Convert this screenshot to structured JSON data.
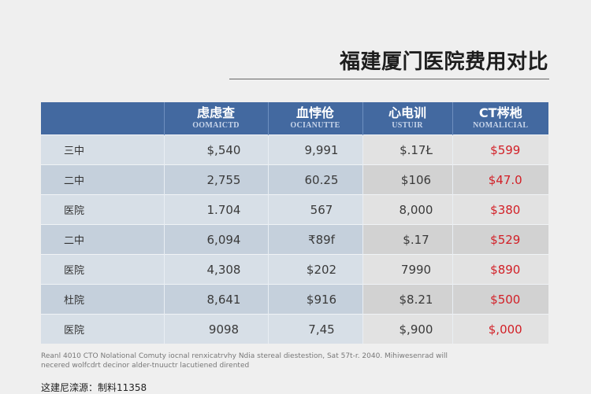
{
  "title": "福建厦门医院费用对比",
  "table": {
    "headers": [
      {
        "main": "",
        "sub": ""
      },
      {
        "main": "虑虑查",
        "sub": "OOMAICTD"
      },
      {
        "main": "血悖伧",
        "sub": "OCIANUTTE"
      },
      {
        "main": "心电训",
        "sub": "USTUIR"
      },
      {
        "main": "CT梣杝",
        "sub": "NOMALICIAL"
      }
    ],
    "rows": [
      {
        "label": "三中",
        "c1": "$,540",
        "c2": "9,991",
        "c3": "$.17Ł",
        "c4": "$599"
      },
      {
        "label": "二中",
        "c1": "2,755",
        "c2": "60.25",
        "c3": "$106",
        "c4": "$47.0"
      },
      {
        "label": "医院",
        "c1": "1.704",
        "c2": "567",
        "c3": "8,000",
        "c4": "$380"
      },
      {
        "label": "二中",
        "c1": "6,094",
        "c2": "₹89f",
        "c3": "$.17",
        "c4": "$529"
      },
      {
        "label": "医院",
        "c1": "4,308",
        "c2": "$202",
        "c3": "7990",
        "c4": "$890"
      },
      {
        "label": "杜院",
        "c1": "8,641",
        "c2": "$916",
        "c3": "$8.21",
        "c4": "$500"
      },
      {
        "label": "医院",
        "c1": "9098",
        "c2": "7,45",
        "c3": "$,900",
        "c4": "$,000"
      }
    ],
    "colors": {
      "header_bg": "#4369a0",
      "highlight_text": "#d21f26"
    }
  },
  "footnote": "Reanl 4010 CTO Nolational Comuty iocnal renxicatrvhy Ndia stereal diestestion, Sat 57t-r. 2040. Mihiwesenrad will necered wolfcdrt decinor alder-tnuuctr lacutiened dirented",
  "source": "这建尼滦源：制料11358"
}
